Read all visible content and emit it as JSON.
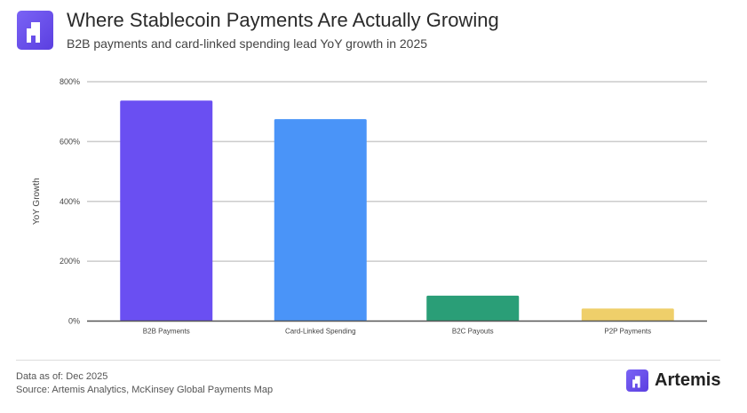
{
  "header": {
    "title": "Where Stablecoin Payments Are Actually Growing",
    "subtitle": "B2B payments and card-linked spending lead YoY growth in 2025"
  },
  "chart_data": {
    "type": "bar",
    "title": "Where Stablecoin Payments Are Actually Growing",
    "subtitle": "B2B payments and card-linked spending lead YoY growth in 2025",
    "xlabel": "",
    "ylabel": "YoY Growth",
    "categories": [
      "B2B Payments",
      "Card-Linked Spending",
      "B2C Payouts",
      "P2P Payments"
    ],
    "values": [
      737,
      675,
      85,
      42
    ],
    "colors": [
      "#6a4ff2",
      "#4a94f8",
      "#2a9e77",
      "#efcf6a"
    ],
    "ylim": [
      0,
      800
    ],
    "yticks": [
      0,
      200,
      400,
      600,
      800
    ],
    "ytick_labels": [
      "0%",
      "200%",
      "400%",
      "600%",
      "800%"
    ],
    "grid": true,
    "legend": "none"
  },
  "footer": {
    "data_as_of": "Data as of: Dec 2025",
    "source": "Source: Artemis Analytics, McKinsey Global Payments Map",
    "brand": "Artemis"
  }
}
